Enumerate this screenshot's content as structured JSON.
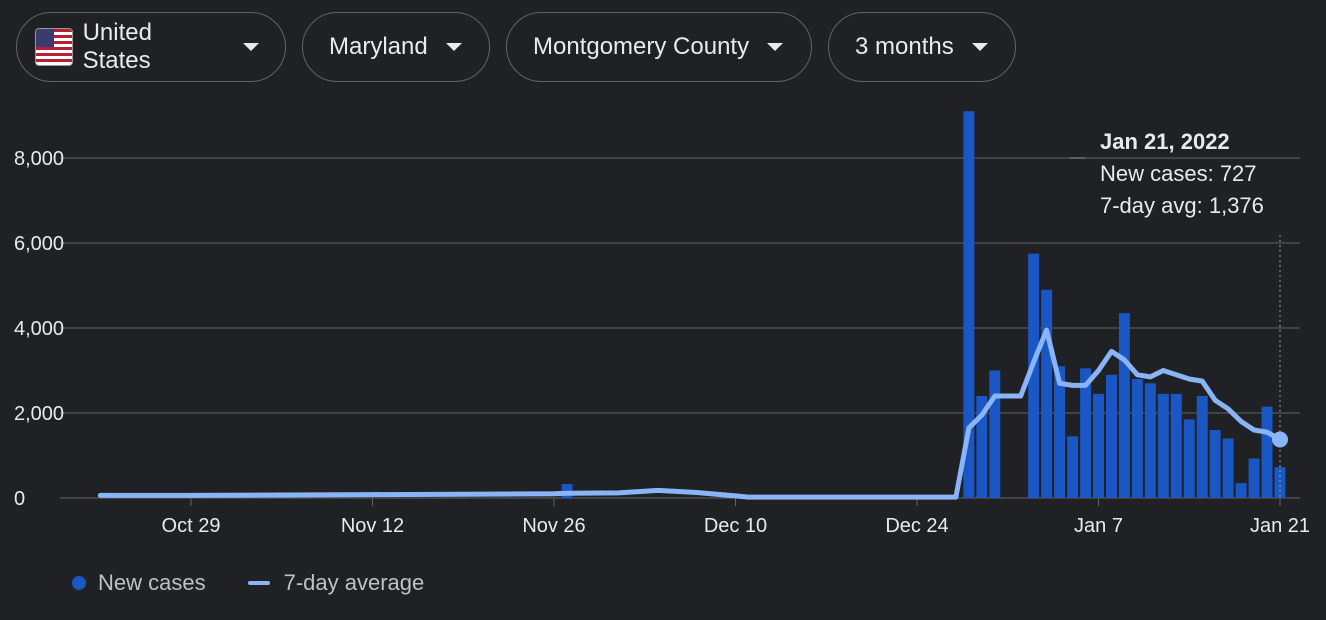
{
  "filters": {
    "country": "United States",
    "state": "Maryland",
    "county": "Montgomery County",
    "range": "3 months"
  },
  "colors": {
    "bars": "#1a56c4",
    "line": "#8ab4f8",
    "grid": "#5f6368",
    "background": "#202124"
  },
  "tooltip": {
    "date": "Jan 21, 2022",
    "new_cases": "New cases: 727",
    "avg": "7-day avg: 1,376"
  },
  "legend": {
    "bars_label": "New cases",
    "line_label": "7-day average"
  },
  "chart_data": {
    "type": "bar",
    "title": "",
    "xlabel": "",
    "ylabel": "",
    "ylim": [
      0,
      9000
    ],
    "y_ticks": [
      0,
      2000,
      4000,
      6000,
      8000
    ],
    "y_tick_labels": [
      "0",
      "2,000",
      "4,000",
      "6,000",
      "8,000"
    ],
    "grid": true,
    "legend": "bottom-left",
    "x_tick_labels": [
      {
        "label": "Oct 29",
        "date": "2021-10-29"
      },
      {
        "label": "Nov 12",
        "date": "2021-11-12"
      },
      {
        "label": "Nov 26",
        "date": "2021-11-26"
      },
      {
        "label": "Dec 10",
        "date": "2021-12-10"
      },
      {
        "label": "Dec 24",
        "date": "2021-12-24"
      },
      {
        "label": "Jan 7",
        "date": "2022-01-07"
      },
      {
        "label": "Jan 21",
        "date": "2022-01-21"
      }
    ],
    "series": [
      {
        "name": "New cases",
        "type": "bar",
        "points": [
          {
            "x": "2021-11-27",
            "y": 330
          },
          {
            "x": "2021-12-28",
            "y": 9100
          },
          {
            "x": "2021-12-29",
            "y": 2400
          },
          {
            "x": "2021-12-30",
            "y": 3000
          },
          {
            "x": "2022-01-02",
            "y": 5750
          },
          {
            "x": "2022-01-03",
            "y": 4900
          },
          {
            "x": "2022-01-04",
            "y": 3100
          },
          {
            "x": "2022-01-05",
            "y": 1450
          },
          {
            "x": "2022-01-06",
            "y": 3050
          },
          {
            "x": "2022-01-07",
            "y": 2450
          },
          {
            "x": "2022-01-08",
            "y": 2900
          },
          {
            "x": "2022-01-09",
            "y": 4350
          },
          {
            "x": "2022-01-10",
            "y": 2800
          },
          {
            "x": "2022-01-11",
            "y": 2700
          },
          {
            "x": "2022-01-12",
            "y": 2450
          },
          {
            "x": "2022-01-13",
            "y": 2450
          },
          {
            "x": "2022-01-14",
            "y": 1850
          },
          {
            "x": "2022-01-15",
            "y": 2400
          },
          {
            "x": "2022-01-16",
            "y": 1600
          },
          {
            "x": "2022-01-17",
            "y": 1400
          },
          {
            "x": "2022-01-18",
            "y": 350
          },
          {
            "x": "2022-01-19",
            "y": 930
          },
          {
            "x": "2022-01-20",
            "y": 2150
          },
          {
            "x": "2022-01-21",
            "y": 727
          }
        ]
      },
      {
        "name": "7-day average",
        "type": "line",
        "points": [
          {
            "x": "2021-10-22",
            "y": 60
          },
          {
            "x": "2021-10-29",
            "y": 60
          },
          {
            "x": "2021-11-05",
            "y": 70
          },
          {
            "x": "2021-11-12",
            "y": 80
          },
          {
            "x": "2021-11-19",
            "y": 90
          },
          {
            "x": "2021-11-26",
            "y": 100
          },
          {
            "x": "2021-11-27",
            "y": 110
          },
          {
            "x": "2021-12-01",
            "y": 120
          },
          {
            "x": "2021-12-04",
            "y": 180
          },
          {
            "x": "2021-12-07",
            "y": 130
          },
          {
            "x": "2021-12-10",
            "y": 50
          },
          {
            "x": "2021-12-11",
            "y": 20
          },
          {
            "x": "2021-12-27",
            "y": 20
          },
          {
            "x": "2021-12-28",
            "y": 1650
          },
          {
            "x": "2021-12-29",
            "y": 1950
          },
          {
            "x": "2021-12-30",
            "y": 2400
          },
          {
            "x": "2022-01-01",
            "y": 2400
          },
          {
            "x": "2022-01-02",
            "y": 3200
          },
          {
            "x": "2022-01-03",
            "y": 3950
          },
          {
            "x": "2022-01-04",
            "y": 2700
          },
          {
            "x": "2022-01-05",
            "y": 2650
          },
          {
            "x": "2022-01-06",
            "y": 2650
          },
          {
            "x": "2022-01-07",
            "y": 3000
          },
          {
            "x": "2022-01-08",
            "y": 3450
          },
          {
            "x": "2022-01-09",
            "y": 3250
          },
          {
            "x": "2022-01-10",
            "y": 2900
          },
          {
            "x": "2022-01-11",
            "y": 2850
          },
          {
            "x": "2022-01-12",
            "y": 3000
          },
          {
            "x": "2022-01-13",
            "y": 2900
          },
          {
            "x": "2022-01-14",
            "y": 2800
          },
          {
            "x": "2022-01-15",
            "y": 2750
          },
          {
            "x": "2022-01-16",
            "y": 2300
          },
          {
            "x": "2022-01-17",
            "y": 2100
          },
          {
            "x": "2022-01-18",
            "y": 1800
          },
          {
            "x": "2022-01-19",
            "y": 1600
          },
          {
            "x": "2022-01-20",
            "y": 1550
          },
          {
            "x": "2022-01-21",
            "y": 1376
          }
        ]
      }
    ]
  }
}
